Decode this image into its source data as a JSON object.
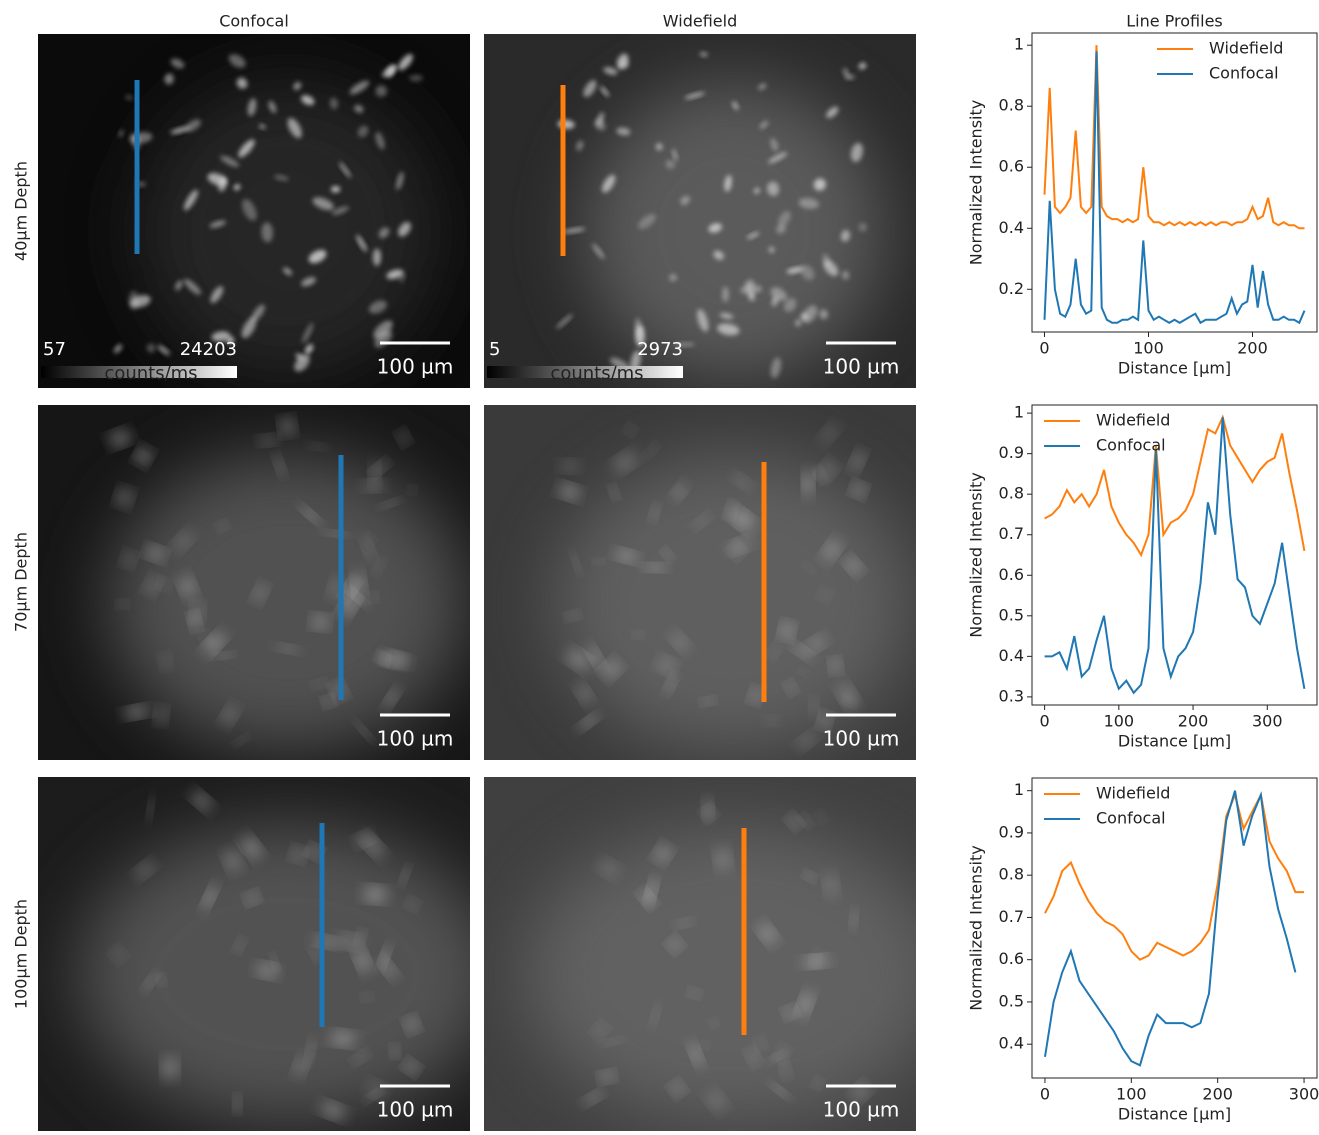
{
  "figure": {
    "column_titles": [
      "Confocal",
      "Widefield"
    ],
    "row_labels": [
      "40µm Depth",
      "70µm Depth",
      "100µm Depth"
    ],
    "scale_bar_label": "100 µm",
    "colorbars": [
      {
        "min_label": "57",
        "max_label": "24203",
        "unit": "counts/ms"
      },
      {
        "min_label": "5",
        "max_label": "2973",
        "unit": "counts/ms"
      }
    ]
  },
  "chart_data": [
    {
      "type": "line",
      "title": "Line Profiles",
      "x_label": "Distance [µm]",
      "y_label": "Normalized Intensity",
      "legend": "upper right",
      "x": [
        0,
        5,
        10,
        15,
        20,
        25,
        30,
        35,
        40,
        45,
        50,
        55,
        60,
        65,
        70,
        75,
        80,
        85,
        90,
        95,
        100,
        105,
        110,
        115,
        120,
        125,
        130,
        135,
        140,
        145,
        150,
        155,
        160,
        165,
        170,
        175,
        180,
        185,
        190,
        195,
        200,
        205,
        210,
        215,
        220,
        225,
        230,
        235,
        240,
        245,
        250
      ],
      "series": [
        {
          "name": "Widefield",
          "color": "#ff7f0e",
          "values": [
            0.51,
            0.86,
            0.47,
            0.45,
            0.47,
            0.5,
            0.72,
            0.47,
            0.45,
            0.47,
            1.0,
            0.47,
            0.44,
            0.43,
            0.43,
            0.42,
            0.43,
            0.42,
            0.43,
            0.6,
            0.44,
            0.42,
            0.42,
            0.41,
            0.42,
            0.41,
            0.42,
            0.41,
            0.42,
            0.41,
            0.42,
            0.41,
            0.42,
            0.41,
            0.42,
            0.42,
            0.41,
            0.42,
            0.42,
            0.43,
            0.47,
            0.43,
            0.44,
            0.5,
            0.42,
            0.41,
            0.42,
            0.41,
            0.41,
            0.4,
            0.4
          ]
        },
        {
          "name": "Confocal",
          "color": "#1f77b4",
          "values": [
            0.1,
            0.49,
            0.2,
            0.12,
            0.11,
            0.15,
            0.3,
            0.15,
            0.12,
            0.13,
            0.98,
            0.14,
            0.1,
            0.09,
            0.09,
            0.1,
            0.1,
            0.11,
            0.1,
            0.36,
            0.13,
            0.1,
            0.11,
            0.1,
            0.09,
            0.1,
            0.09,
            0.1,
            0.11,
            0.12,
            0.09,
            0.1,
            0.1,
            0.1,
            0.11,
            0.12,
            0.17,
            0.12,
            0.15,
            0.16,
            0.28,
            0.14,
            0.26,
            0.15,
            0.1,
            0.1,
            0.11,
            0.1,
            0.1,
            0.09,
            0.13
          ]
        }
      ],
      "xlim": [
        -12,
        262
      ],
      "xticks": [
        0,
        100,
        200
      ],
      "ylim": [
        0.06,
        1.04
      ],
      "yticks": [
        0.2,
        0.4,
        0.6,
        0.8,
        1.0
      ]
    },
    {
      "type": "line",
      "x_label": "Distance [µm]",
      "y_label": "Normalized Intensity",
      "legend": "upper left",
      "x": [
        0,
        10,
        20,
        30,
        40,
        50,
        60,
        70,
        80,
        90,
        100,
        110,
        120,
        130,
        140,
        150,
        160,
        170,
        180,
        190,
        200,
        210,
        220,
        230,
        240,
        250,
        260,
        270,
        280,
        290,
        300,
        310,
        320,
        330,
        340,
        350
      ],
      "series": [
        {
          "name": "Widefield",
          "color": "#ff7f0e",
          "values": [
            0.74,
            0.75,
            0.77,
            0.81,
            0.78,
            0.8,
            0.77,
            0.8,
            0.86,
            0.77,
            0.73,
            0.7,
            0.68,
            0.65,
            0.7,
            0.92,
            0.7,
            0.73,
            0.74,
            0.76,
            0.8,
            0.88,
            0.96,
            0.95,
            0.99,
            0.92,
            0.89,
            0.86,
            0.83,
            0.86,
            0.88,
            0.89,
            0.95,
            0.85,
            0.76,
            0.66
          ]
        },
        {
          "name": "Confocal",
          "color": "#1f77b4",
          "values": [
            0.4,
            0.4,
            0.41,
            0.37,
            0.45,
            0.35,
            0.37,
            0.44,
            0.5,
            0.37,
            0.32,
            0.34,
            0.31,
            0.33,
            0.42,
            0.91,
            0.42,
            0.35,
            0.4,
            0.42,
            0.46,
            0.58,
            0.78,
            0.7,
            0.99,
            0.75,
            0.59,
            0.57,
            0.5,
            0.48,
            0.53,
            0.58,
            0.68,
            0.55,
            0.42,
            0.32
          ]
        }
      ],
      "xlim": [
        -17,
        367
      ],
      "xticks": [
        0,
        100,
        200,
        300
      ],
      "ylim": [
        0.28,
        1.02
      ],
      "yticks": [
        0.3,
        0.4,
        0.5,
        0.6,
        0.7,
        0.8,
        0.9,
        1.0
      ]
    },
    {
      "type": "line",
      "x_label": "Distance [µm]",
      "y_label": "Normalized Intensity",
      "legend": "upper left",
      "x": [
        0,
        10,
        20,
        30,
        40,
        50,
        60,
        70,
        80,
        90,
        100,
        110,
        120,
        130,
        140,
        150,
        160,
        170,
        180,
        190,
        200,
        210,
        220,
        230,
        240,
        250,
        260,
        270,
        280,
        290,
        300
      ],
      "series": [
        {
          "name": "Widefield",
          "color": "#ff7f0e",
          "values": [
            0.71,
            0.75,
            0.81,
            0.83,
            0.78,
            0.74,
            0.71,
            0.69,
            0.68,
            0.66,
            0.62,
            0.6,
            0.61,
            0.64,
            0.63,
            0.62,
            0.61,
            0.62,
            0.64,
            0.67,
            0.78,
            0.94,
            0.99,
            0.91,
            0.95,
            0.99,
            0.88,
            0.84,
            0.81,
            0.76,
            0.76
          ]
        },
        {
          "name": "Confocal",
          "color": "#1f77b4",
          "values": [
            0.37,
            0.5,
            0.57,
            0.62,
            0.55,
            0.52,
            0.49,
            0.46,
            0.43,
            0.39,
            0.36,
            0.35,
            0.42,
            0.47,
            0.45,
            0.45,
            0.45,
            0.44,
            0.45,
            0.52,
            0.75,
            0.93,
            1.0,
            0.87,
            0.94,
            0.99,
            0.82,
            0.72,
            0.65,
            0.57,
            null
          ]
        }
      ],
      "xlim": [
        -15,
        315
      ],
      "xticks": [
        0,
        100,
        200,
        300
      ],
      "ylim": [
        0.32,
        1.03
      ],
      "yticks": [
        0.4,
        0.5,
        0.6,
        0.7,
        0.8,
        0.9,
        1.0
      ]
    }
  ]
}
